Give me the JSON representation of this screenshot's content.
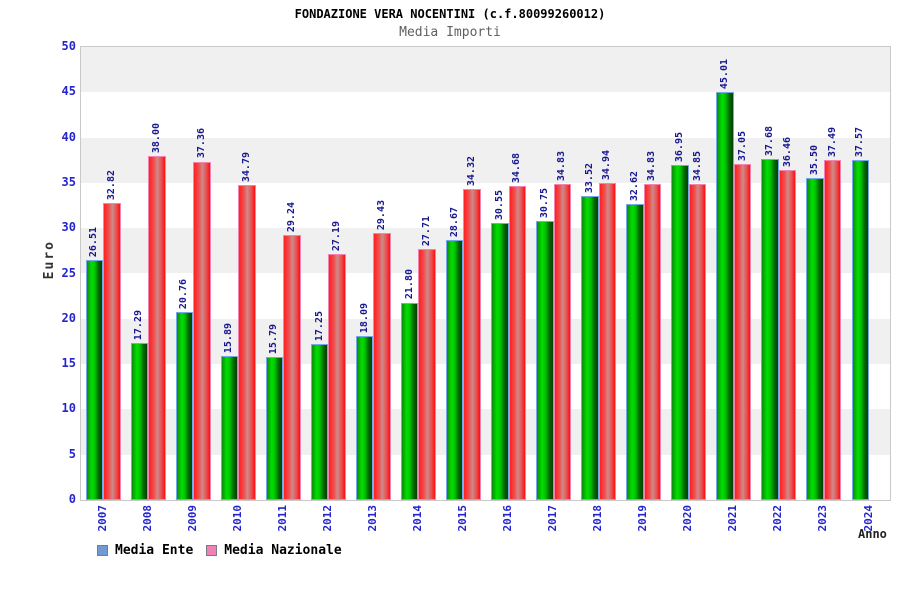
{
  "header": {
    "title": "FONDAZIONE VERA NOCENTINI (c.f.80099260012)",
    "subtitle": "Media Importi"
  },
  "chart_data": {
    "type": "bar",
    "title": "FONDAZIONE VERA NOCENTINI (c.f.80099260012)",
    "subtitle": "Media Importi",
    "xlabel": "Anno",
    "ylabel": "Euro",
    "ylim": [
      0,
      50
    ],
    "ytick_step": 5,
    "yticks": [
      0,
      5,
      10,
      15,
      20,
      25,
      30,
      35,
      40,
      45,
      50
    ],
    "grid": "alternating-horizontal-bands",
    "legend_position": "bottom-left",
    "value_labels": "rotated-90-above-bars",
    "categories": [
      "2007",
      "2008",
      "2009",
      "2010",
      "2011",
      "2012",
      "2013",
      "2014",
      "2015",
      "2016",
      "2017",
      "2018",
      "2019",
      "2020",
      "2021",
      "2022",
      "2023",
      "2024"
    ],
    "series": [
      {
        "name": "Media Ente",
        "legend_color": "#6f9ad3",
        "bar_border_color": "#74a8e8",
        "bar_gradient": [
          "#0d8a0d",
          "#00e000",
          "#00c400",
          "#056605",
          "#024202"
        ],
        "values": [
          26.51,
          17.29,
          20.76,
          15.89,
          15.79,
          17.25,
          18.09,
          21.8,
          28.67,
          30.55,
          30.75,
          33.52,
          32.62,
          36.95,
          45.01,
          37.68,
          35.5,
          37.57
        ]
      },
      {
        "name": "Media Nazionale",
        "legend_color": "#ef82b4",
        "bar_border_color": "#f783b1",
        "bar_gradient": [
          "#ff2020",
          "#ef5252",
          "#cd8b8b",
          "#e95050",
          "#ff0e0e"
        ],
        "values": [
          32.82,
          38.0,
          37.36,
          34.79,
          29.24,
          27.19,
          29.43,
          27.71,
          34.32,
          34.68,
          34.83,
          34.94,
          34.83,
          34.85,
          37.05,
          36.46,
          37.49,
          null
        ]
      }
    ]
  },
  "colors": {
    "axis_text": "#2525cd",
    "value_label_text": "#17178e",
    "band_gray": "#f0f0f0",
    "band_white": "#ffffff",
    "plot_border": "#c9c9c9",
    "subtitle_text": "#606060"
  }
}
